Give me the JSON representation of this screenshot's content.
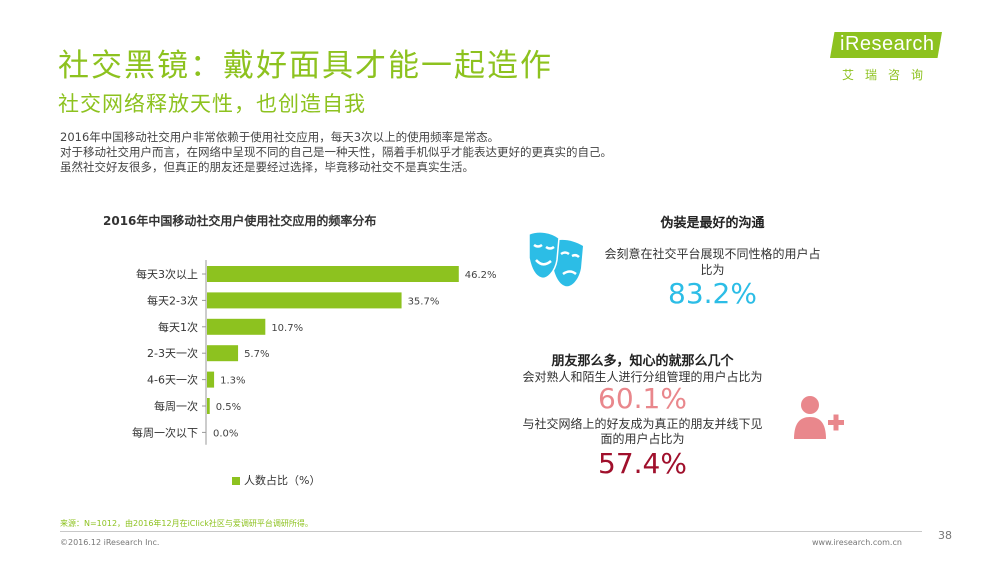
{
  "header": {
    "title": "社交黑镜：戴好面具才能一起造作",
    "subtitle": "社交网络释放天性，也创造自我"
  },
  "logo": {
    "brand": "iResearch",
    "cn": "艾瑞咨询"
  },
  "intro": [
    "2016年中国移动社交用户非常依赖于使用社交应用，每天3次以上的使用频率是常态。",
    "对于移动社交用户而言，在网络中呈现不同的自己是一种天性，隔着手机似乎才能表达更好的更真实的自己。",
    "虽然社交好友很多，但真正的朋友还是要经过选择，毕竟移动社交不是真实生活。"
  ],
  "chart_data": {
    "type": "bar",
    "orientation": "horizontal",
    "title": "2016年中国移动社交用户使用社交应用的频率分布",
    "categories": [
      "每天3次以上",
      "每天2-3次",
      "每天1次",
      "2-3天一次",
      "4-6天一次",
      "每周一次",
      "每周一次以下"
    ],
    "values": [
      46.2,
      35.7,
      10.7,
      5.7,
      1.3,
      0.5,
      0.0
    ],
    "value_labels": [
      "46.2%",
      "35.7%",
      "10.7%",
      "5.7%",
      "1.3%",
      "0.5%",
      "0.0%"
    ],
    "series": [
      {
        "name": "人数占比（%）",
        "values": [
          46.2,
          35.7,
          10.7,
          5.7,
          1.3,
          0.5,
          0.0
        ]
      }
    ],
    "legend": "bottom",
    "grid": false,
    "color": "#8dc21f"
  },
  "section1": {
    "heading": "伪装是最好的沟通",
    "desc": "会刻意在社交平台展现不同性格的用户占比为",
    "value": "83.2%",
    "icon": "theater-masks-icon",
    "color": "#2cbde6"
  },
  "section2": {
    "heading": "朋友那么多，知心的就那么几个",
    "desc1": "会对熟人和陌生人进行分组管理的用户占比为",
    "value1": "60.1%",
    "desc2": "与社交网络上的好友成为真正的朋友并线下见面的用户占比为",
    "value2": "57.4%",
    "icon": "add-friend-icon",
    "color1": "#e9878c",
    "color2": "#a0102c"
  },
  "footer": {
    "source": "来源：N=1012，由2016年12月在iClick社区与爱调研平台调研所得。",
    "copyright": "©2016.12 iResearch Inc.",
    "site": "www.iresearch.com.cn",
    "page": "38"
  }
}
